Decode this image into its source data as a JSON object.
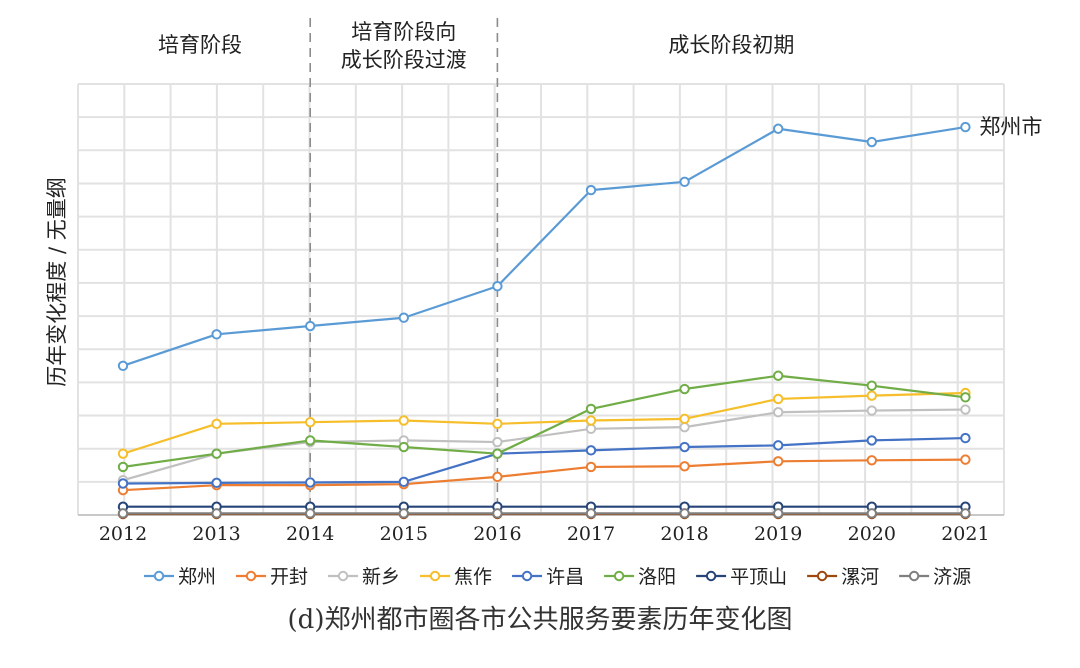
{
  "chart_data": {
    "type": "line",
    "caption": "(d)郑州都市圈各市公共服务要素历年变化图",
    "ylabel": "历年变化程度 / 无量纲",
    "x": [
      "2012",
      "2013",
      "2014",
      "2015",
      "2016",
      "2017",
      "2018",
      "2019",
      "2020",
      "2021"
    ],
    "ylim": [
      0,
      13
    ],
    "grid": true,
    "legend_position": "bottom",
    "stages": [
      {
        "label": "培育阶段",
        "from": "2012",
        "to": "2014"
      },
      {
        "label": "培育阶段向\n成长阶段过渡",
        "from": "2014",
        "to": "2016"
      },
      {
        "label": "成长阶段初期",
        "from": "2016",
        "to": "2021"
      }
    ],
    "stage_dividers": [
      "2014",
      "2016"
    ],
    "end_label": {
      "series": "郑州",
      "text": "郑州市"
    },
    "series": [
      {
        "name": "郑州",
        "color": "#5b9bd5",
        "values": [
          4.5,
          5.45,
          5.7,
          5.95,
          6.9,
          9.8,
          10.05,
          11.65,
          11.25,
          11.7
        ]
      },
      {
        "name": "开封",
        "color": "#ed7d31",
        "values": [
          0.75,
          0.9,
          0.9,
          0.93,
          1.15,
          1.45,
          1.47,
          1.62,
          1.65,
          1.67
        ]
      },
      {
        "name": "新乡",
        "color": "#c0c0c0",
        "values": [
          1.05,
          1.85,
          2.2,
          2.25,
          2.2,
          2.6,
          2.65,
          3.1,
          3.15,
          3.18
        ]
      },
      {
        "name": "焦作",
        "color": "#f5be2a",
        "values": [
          1.85,
          2.75,
          2.8,
          2.85,
          2.75,
          2.85,
          2.9,
          3.5,
          3.6,
          3.68
        ]
      },
      {
        "name": "许昌",
        "color": "#4472c4",
        "values": [
          0.95,
          0.97,
          0.98,
          1.0,
          1.85,
          1.95,
          2.05,
          2.1,
          2.25,
          2.32
        ]
      },
      {
        "name": "洛阳",
        "color": "#70ad47",
        "values": [
          1.45,
          1.85,
          2.25,
          2.05,
          1.85,
          3.2,
          3.8,
          4.2,
          3.9,
          3.55
        ]
      },
      {
        "name": "平顶山",
        "color": "#264478",
        "values": [
          0.25,
          0.25,
          0.25,
          0.25,
          0.25,
          0.25,
          0.25,
          0.25,
          0.25,
          0.25
        ]
      },
      {
        "name": "漯河",
        "color": "#9e480e",
        "values": [
          0.03,
          0.03,
          0.03,
          0.03,
          0.03,
          0.03,
          0.03,
          0.03,
          0.03,
          0.03
        ]
      },
      {
        "name": "济源",
        "color": "#7f7f7f",
        "values": [
          0.05,
          0.05,
          0.05,
          0.05,
          0.05,
          0.05,
          0.05,
          0.05,
          0.05,
          0.05
        ]
      }
    ]
  }
}
